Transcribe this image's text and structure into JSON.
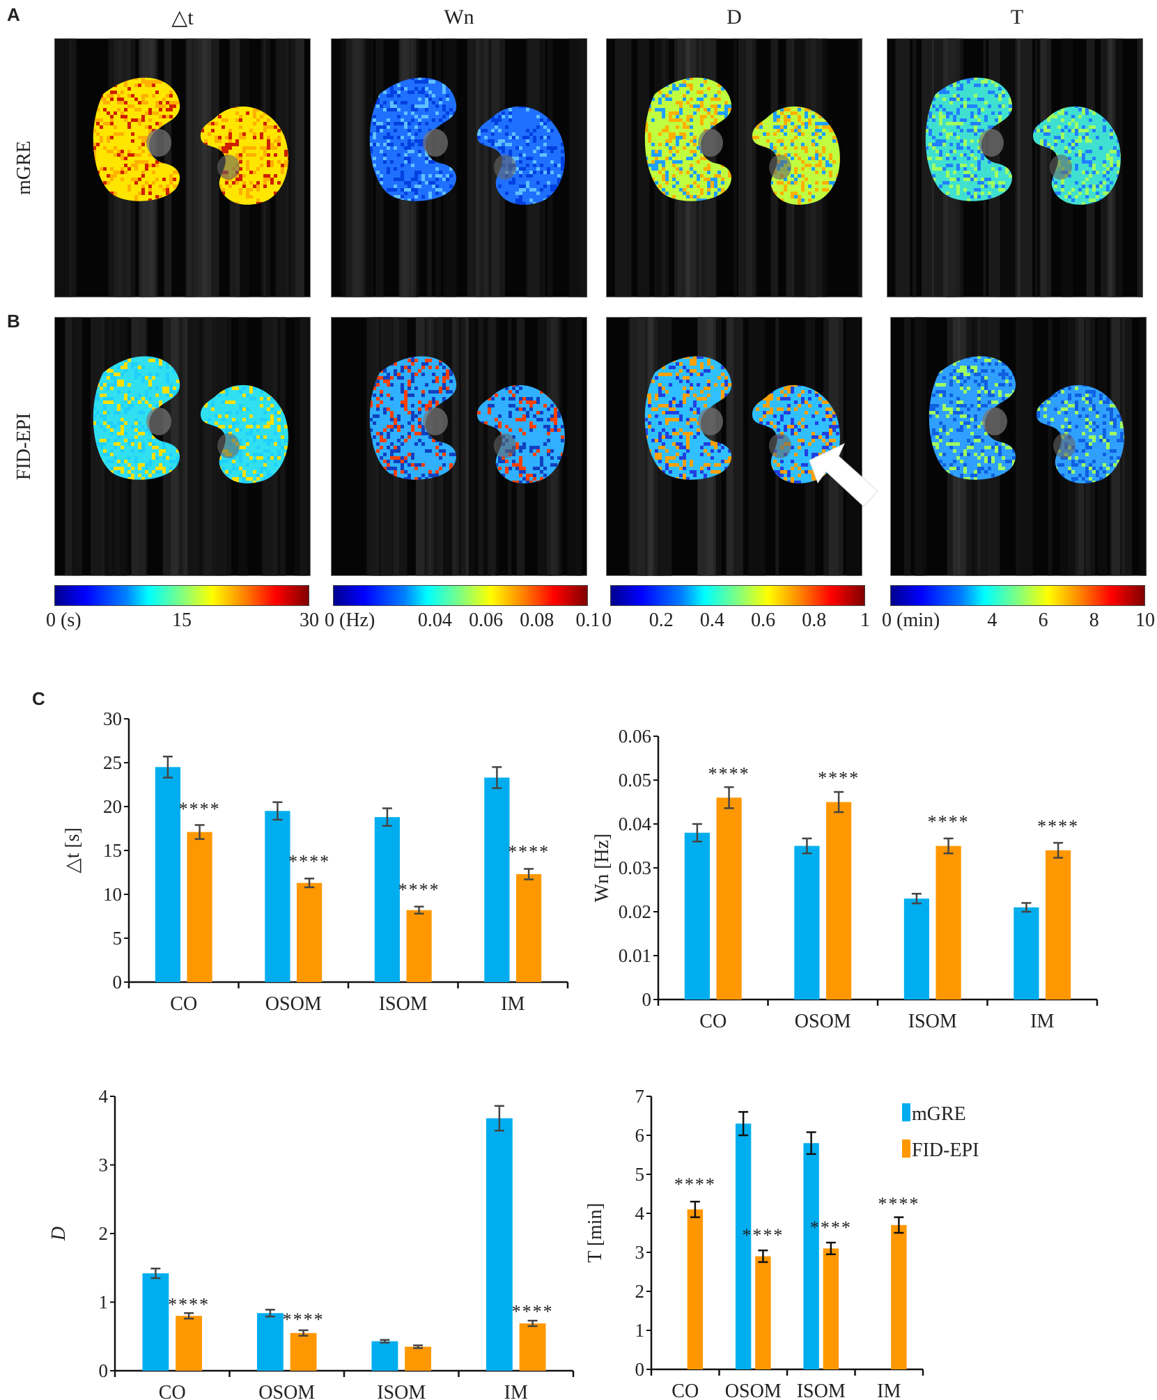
{
  "panels": {
    "A": {
      "letter": "A"
    },
    "B": {
      "letter": "B"
    },
    "C": {
      "letter": "C"
    }
  },
  "columns": [
    "△t",
    "Wn",
    "D",
    "T"
  ],
  "rows": [
    "mGRE",
    "FID-EPI"
  ],
  "map_colors": {
    "A": [
      [
        "#ffe600",
        "#ffb000",
        "#d02000"
      ],
      [
        "#2070ff",
        "#0040e0",
        "#60c0ff"
      ],
      [
        "#c0ff40",
        "#ffb000",
        "#20a0ff"
      ],
      [
        "#40e0d0",
        "#2080ff",
        "#a0ff60"
      ]
    ],
    "B": [
      [
        "#30e0f0",
        "#20d0ff",
        "#ffe000"
      ],
      [
        "#30b0ff",
        "#1040c0",
        "#ff4000"
      ],
      [
        "#30c0ff",
        "#ffa000",
        "#2040e0"
      ],
      [
        "#30a0ff",
        "#1060e0",
        "#a0ff60"
      ]
    ]
  },
  "annotation": {
    "arrow": "white-arrow",
    "panel": "B-D"
  },
  "colorbars": [
    {
      "ticks": [
        {
          "label": "0 (s)",
          "pos": 0
        },
        {
          "label": "15",
          "pos": 0.5
        },
        {
          "label": "30",
          "pos": 1
        }
      ]
    },
    {
      "ticks": [
        {
          "label": "0 (Hz)",
          "pos": 0
        },
        {
          "label": "0.04",
          "pos": 0.4
        },
        {
          "label": "0.06",
          "pos": 0.6
        },
        {
          "label": "0.08",
          "pos": 0.8
        },
        {
          "label": "0.1",
          "pos": 1
        }
      ]
    },
    {
      "ticks": [
        {
          "label": "0",
          "pos": 0
        },
        {
          "label": "0.2",
          "pos": 0.2
        },
        {
          "label": "0.4",
          "pos": 0.4
        },
        {
          "label": "0.6",
          "pos": 0.6
        },
        {
          "label": "0.8",
          "pos": 0.8
        },
        {
          "label": "1",
          "pos": 1
        }
      ]
    },
    {
      "ticks": [
        {
          "label": "0 (min)",
          "pos": 0
        },
        {
          "label": "4",
          "pos": 0.4
        },
        {
          "label": "6",
          "pos": 0.6
        },
        {
          "label": "8",
          "pos": 0.8
        },
        {
          "label": "10",
          "pos": 1
        }
      ]
    }
  ],
  "colors": {
    "mGRE": "#00aeef",
    "FID-EPI": "#ff9800",
    "error": "#444444"
  },
  "chart_data": [
    {
      "type": "bar",
      "title": "",
      "categories": [
        "CO",
        "OSOM",
        "ISOM",
        "IM"
      ],
      "xlabel": "",
      "ylabel": "△t [s]",
      "ylim": [
        0,
        30
      ],
      "yticks": [
        "0",
        "5",
        "10",
        "15",
        "20",
        "25",
        "30"
      ],
      "series": [
        {
          "name": "mGRE",
          "values": [
            24.5,
            19.5,
            18.8,
            23.3
          ],
          "errors": [
            1.2,
            1.0,
            1.0,
            1.2
          ]
        },
        {
          "name": "FID-EPI",
          "values": [
            17.1,
            11.3,
            8.2,
            12.3
          ],
          "errors": [
            0.8,
            0.5,
            0.4,
            0.6
          ]
        }
      ],
      "significance": [
        "****",
        "****",
        "****",
        "****"
      ],
      "sig_y": [
        20.0,
        14.0,
        10.8,
        15.1
      ]
    },
    {
      "type": "bar",
      "title": "",
      "categories": [
        "CO",
        "OSOM",
        "ISOM",
        "IM"
      ],
      "xlabel": "",
      "ylabel": "Wn [Hz]",
      "ylim": [
        0,
        0.06
      ],
      "yticks": [
        "0",
        "0.01",
        "0.02",
        "0.03",
        "0.04",
        "0.05",
        "0.06"
      ],
      "series": [
        {
          "name": "mGRE",
          "values": [
            0.038,
            0.035,
            0.023,
            0.021
          ],
          "errors": [
            0.002,
            0.0017,
            0.0011,
            0.001
          ]
        },
        {
          "name": "FID-EPI",
          "values": [
            0.046,
            0.045,
            0.035,
            0.034
          ],
          "errors": [
            0.0024,
            0.0023,
            0.0017,
            0.0017
          ]
        }
      ],
      "significance": [
        "****",
        "****",
        "****",
        "****"
      ],
      "sig_y": [
        0.052,
        0.051,
        0.041,
        0.04
      ]
    },
    {
      "type": "bar",
      "title": "",
      "categories": [
        "CO",
        "OSOM",
        "ISOM",
        "IM"
      ],
      "xlabel": "",
      "ylabel": "D",
      "ylim": [
        0,
        4
      ],
      "yticks": [
        "0",
        "1",
        "2",
        "3",
        "4"
      ],
      "series": [
        {
          "name": "mGRE",
          "values": [
            1.42,
            0.84,
            0.43,
            3.68
          ],
          "errors": [
            0.07,
            0.05,
            0.02,
            0.18
          ]
        },
        {
          "name": "FID-EPI",
          "values": [
            0.8,
            0.55,
            0.35,
            0.69
          ],
          "errors": [
            0.04,
            0.04,
            0.02,
            0.04
          ]
        }
      ],
      "significance": [
        "****",
        "****",
        "",
        "****"
      ],
      "sig_y": [
        1.0,
        0.78,
        0,
        0.9
      ]
    },
    {
      "type": "bar",
      "title": "",
      "categories": [
        "CO",
        "OSOM",
        "ISOM",
        "IM"
      ],
      "xlabel": "",
      "ylabel": "T [min]",
      "ylim": [
        0,
        7
      ],
      "yticks": [
        "0",
        "1",
        "2",
        "3",
        "4",
        "5",
        "6",
        "7"
      ],
      "series": [
        {
          "name": "mGRE",
          "values": [
            null,
            6.3,
            5.8,
            null
          ],
          "errors": [
            null,
            0.3,
            0.28,
            null
          ]
        },
        {
          "name": "FID-EPI",
          "values": [
            4.1,
            2.9,
            3.1,
            3.7
          ],
          "errors": [
            0.2,
            0.15,
            0.15,
            0.2
          ]
        }
      ],
      "significance": [
        "****",
        "****",
        "****",
        "****"
      ],
      "sig_y": [
        4.8,
        3.5,
        3.7,
        4.3
      ],
      "legend": {
        "position": "top-right",
        "entries": [
          "mGRE",
          "FID-EPI"
        ]
      }
    }
  ]
}
